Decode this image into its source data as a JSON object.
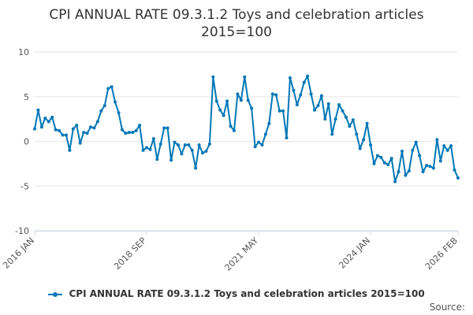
{
  "title_line1": "CPI ANNUAL RATE 09.3.1.2 Toys and celebration articles",
  "title_line2": "2015=100",
  "source_label": "Source:",
  "colors": {
    "series": "#0077B6",
    "grid": "#e6e6e6",
    "axis": "#ccd6eb"
  },
  "chart_data": {
    "type": "line",
    "ylim": [
      -10,
      10
    ],
    "y_ticks": [
      10,
      5,
      0,
      -5,
      -10
    ],
    "x_tick_labels": [
      "2016 JAN",
      "2018 SEP",
      "2021 MAY",
      "2024 JAN",
      "2026 FEB"
    ],
    "x_tick_index": [
      0,
      32,
      64,
      96,
      121
    ],
    "grid": true,
    "legend_position": "bottom",
    "series": [
      {
        "name": "CPI ANNUAL RATE 09.3.1.2 Toys and celebration articles 2015=100",
        "values": [
          1.4,
          3.5,
          1.6,
          2.6,
          2.2,
          2.7,
          1.3,
          1.2,
          0.7,
          0.7,
          -1.0,
          1.4,
          1.8,
          -0.2,
          1.0,
          0.9,
          1.6,
          1.5,
          2.2,
          3.4,
          4.0,
          5.9,
          6.1,
          4.4,
          3.2,
          1.3,
          0.9,
          1.0,
          1.0,
          1.2,
          1.8,
          -1.0,
          -0.7,
          -0.9,
          0.3,
          -2.0,
          -0.3,
          1.5,
          1.5,
          -2.1,
          -0.1,
          -0.4,
          -1.4,
          -0.4,
          -0.4,
          -1.0,
          -3.0,
          -0.4,
          -1.3,
          -1.1,
          -0.3,
          7.2,
          4.5,
          3.5,
          2.9,
          4.5,
          1.7,
          1.2,
          5.3,
          4.6,
          7.2,
          4.6,
          3.7,
          -0.6,
          -0.1,
          -0.4,
          0.8,
          2.0,
          5.3,
          5.2,
          3.4,
          3.4,
          0.4,
          7.1,
          5.7,
          4.1,
          5.2,
          6.6,
          7.3,
          5.3,
          3.5,
          4.0,
          5.1,
          2.5,
          4.2,
          0.8,
          2.5,
          4.1,
          3.4,
          2.7,
          1.7,
          2.4,
          0.8,
          -0.8,
          0.2,
          2.0,
          -0.4,
          -2.5,
          -1.6,
          -1.8,
          -2.4,
          -2.6,
          -1.9,
          -4.5,
          -3.4,
          -1.1,
          -3.8,
          -3.3,
          -1.0,
          -0.1,
          -1.6,
          -3.4,
          -2.7,
          -2.8,
          -3.0,
          0.2,
          -2.2,
          -0.5,
          -1.0,
          -0.5,
          -3.2,
          -4.1
        ]
      }
    ]
  }
}
